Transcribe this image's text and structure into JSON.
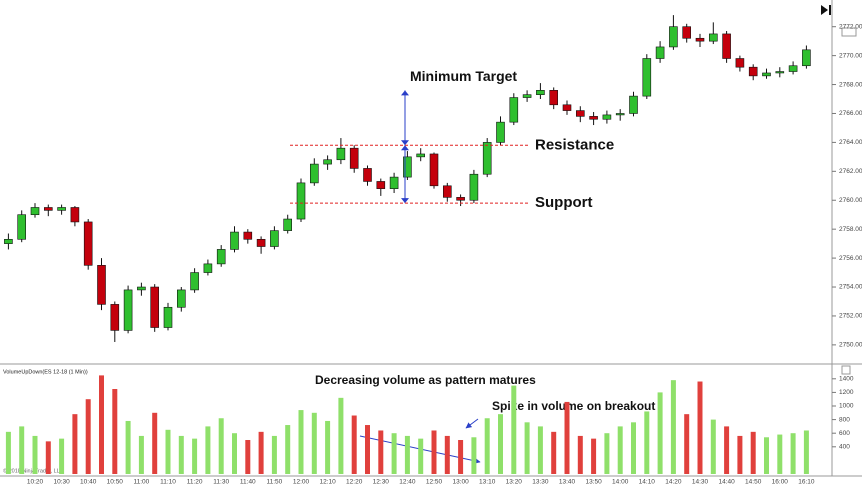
{
  "chart_data": [
    {
      "type": "candlestick",
      "open": [
        2757.0,
        2757.3,
        2759.0,
        2759.5,
        2759.3,
        2759.5,
        2758.5,
        2755.5,
        2752.8,
        2751.0,
        2753.8,
        2754.0,
        2751.2,
        2752.6,
        2753.8,
        2755.0,
        2755.6,
        2756.6,
        2757.8,
        2757.3,
        2756.8,
        2757.9,
        2758.7,
        2761.2,
        2762.5,
        2762.8,
        2763.6,
        2762.2,
        2761.3,
        2760.8,
        2761.6,
        2763.0,
        2763.2,
        2761.0,
        2760.2,
        2760.0,
        2761.8,
        2764.0,
        2765.4,
        2767.1,
        2767.3,
        2767.6,
        2766.6,
        2766.2,
        2765.8,
        2765.6,
        2765.9,
        2766.0,
        2767.2,
        2769.8,
        2770.6,
        2772.0,
        2771.2,
        2771.0,
        2771.5,
        2769.8,
        2769.2,
        2768.6,
        2768.8,
        2768.9,
        2769.3
      ],
      "high": [
        2757.7,
        2759.3,
        2759.8,
        2759.7,
        2759.7,
        2759.6,
        2758.7,
        2756.0,
        2753.0,
        2754.1,
        2754.3,
        2754.2,
        2752.9,
        2754.0,
        2755.3,
        2755.9,
        2756.9,
        2758.2,
        2758.0,
        2757.5,
        2758.2,
        2759.0,
        2761.5,
        2762.9,
        2763.1,
        2764.3,
        2763.8,
        2762.4,
        2761.5,
        2761.9,
        2763.4,
        2763.6,
        2763.3,
        2761.2,
        2760.4,
        2762.1,
        2764.3,
        2765.8,
        2767.4,
        2767.6,
        2768.1,
        2767.8,
        2766.9,
        2766.5,
        2766.1,
        2766.2,
        2766.3,
        2767.5,
        2770.1,
        2771.0,
        2772.8,
        2772.2,
        2771.5,
        2772.3,
        2771.7,
        2770.0,
        2769.4,
        2769.1,
        2769.2,
        2769.6,
        2770.7
      ],
      "low": [
        2756.6,
        2757.1,
        2758.8,
        2758.9,
        2759.0,
        2758.2,
        2755.2,
        2752.4,
        2750.2,
        2750.8,
        2753.4,
        2750.9,
        2751.0,
        2752.3,
        2753.6,
        2754.8,
        2755.4,
        2756.4,
        2757.0,
        2756.3,
        2756.6,
        2757.7,
        2758.5,
        2761.0,
        2762.1,
        2762.5,
        2761.9,
        2761.0,
        2760.3,
        2760.5,
        2761.4,
        2762.7,
        2760.8,
        2759.9,
        2759.6,
        2759.8,
        2761.6,
        2763.8,
        2765.2,
        2766.8,
        2767.0,
        2766.3,
        2765.9,
        2765.4,
        2765.2,
        2765.3,
        2765.5,
        2765.8,
        2767.0,
        2769.5,
        2770.4,
        2770.9,
        2770.6,
        2770.8,
        2769.5,
        2768.9,
        2768.3,
        2768.4,
        2768.5,
        2768.7,
        2769.1
      ],
      "close": [
        2757.3,
        2759.0,
        2759.5,
        2759.3,
        2759.5,
        2758.5,
        2755.5,
        2752.8,
        2751.0,
        2753.8,
        2754.0,
        2751.2,
        2752.6,
        2753.8,
        2755.0,
        2755.6,
        2756.6,
        2757.8,
        2757.3,
        2756.8,
        2757.9,
        2758.7,
        2761.2,
        2762.5,
        2762.8,
        2763.6,
        2762.2,
        2761.3,
        2760.8,
        2761.6,
        2763.0,
        2763.2,
        2761.0,
        2760.2,
        2760.0,
        2761.8,
        2764.0,
        2765.4,
        2767.1,
        2767.3,
        2767.6,
        2766.6,
        2766.2,
        2765.8,
        2765.6,
        2765.9,
        2766.0,
        2767.2,
        2769.8,
        2770.6,
        2772.0,
        2771.2,
        2771.0,
        2771.5,
        2769.8,
        2769.2,
        2768.6,
        2768.8,
        2768.9,
        2769.3,
        2770.4
      ],
      "up_color": "#2fbf2f",
      "down_color": "#c4000c",
      "ylim": [
        2749.3,
        2773.5
      ],
      "yticks": [
        {
          "value": 2750,
          "label": "2750.00"
        },
        {
          "value": 2752,
          "label": "2752.00"
        },
        {
          "value": 2754,
          "label": "2754.00"
        },
        {
          "value": 2756,
          "label": "2756.00"
        },
        {
          "value": 2758,
          "label": "2758.00"
        },
        {
          "value": 2760,
          "label": "2760.00"
        },
        {
          "value": 2762,
          "label": "2762.00"
        },
        {
          "value": 2764,
          "label": "2764.00"
        },
        {
          "value": 2766,
          "label": "2766.00"
        },
        {
          "value": 2768,
          "label": "2768.00"
        },
        {
          "value": 2770,
          "label": "2770.00"
        },
        {
          "value": 2772,
          "label": "2772.00"
        }
      ],
      "annotations": [
        {
          "text": "Minimum Target",
          "value": 2767.6,
          "kind": "target"
        },
        {
          "text": "Resistance",
          "value": 2763.8,
          "kind": "level"
        },
        {
          "text": "Support",
          "value": 2759.8,
          "kind": "level"
        }
      ]
    },
    {
      "type": "bar",
      "title": "VolumeUpDown(ES 12-18 (1 Min))",
      "categories": [
        null,
        null,
        "10:20",
        null,
        "10:30",
        null,
        "10:40",
        null,
        "10:50",
        null,
        "11:00",
        null,
        "11:10",
        null,
        "11:20",
        null,
        "11:30",
        null,
        "11:40",
        null,
        "11:50",
        null,
        "12:00",
        null,
        "12:10",
        null,
        "12:20",
        null,
        "12:30",
        null,
        "12:40",
        null,
        "12:50",
        null,
        "13:00",
        null,
        "13:10",
        null,
        "13:20",
        null,
        "13:30",
        null,
        "13:40",
        null,
        "13:50",
        null,
        "14:00",
        null,
        "14:10",
        null,
        "14:20",
        null,
        "14:30",
        null,
        "14:40",
        null,
        "14:50",
        null,
        "16:00",
        null,
        "16:10"
      ],
      "values": [
        620,
        700,
        560,
        480,
        520,
        880,
        1100,
        1450,
        1250,
        780,
        560,
        900,
        650,
        560,
        520,
        700,
        820,
        600,
        500,
        620,
        560,
        720,
        940,
        900,
        780,
        1120,
        860,
        720,
        640,
        600,
        560,
        520,
        640,
        560,
        500,
        540,
        820,
        880,
        1300,
        760,
        700,
        620,
        1060,
        560,
        520,
        600,
        700,
        760,
        920,
        1200,
        1380,
        880,
        1360,
        800,
        700,
        560,
        620,
        540,
        580,
        600,
        640
      ],
      "up_color": "#8fe06a",
      "down_color": "#e0403c",
      "ylim": [
        0,
        1500
      ],
      "yticks": [
        400,
        600,
        800,
        1000,
        1200,
        1400
      ],
      "annotations": [
        {
          "text": "Decreasing volume as pattern matures"
        },
        {
          "text": "Spike in volume on breakout"
        }
      ]
    }
  ],
  "watermark": "© 2018 NinjaTrader, LLC"
}
